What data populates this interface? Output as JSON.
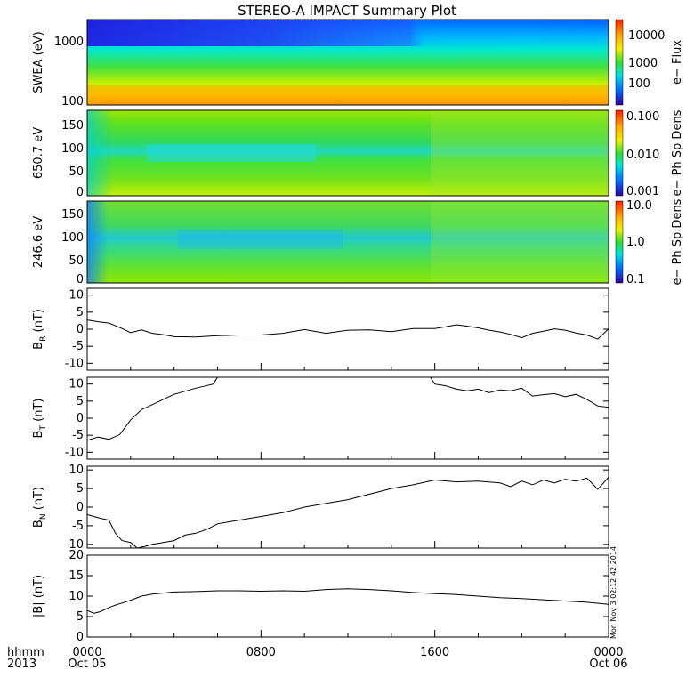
{
  "title": "STEREO-A IMPACT Summary Plot",
  "stamp": "Mon Nov 3 02:12:42 2014",
  "x_axis": {
    "row1_label": "hhmm",
    "row2_label": "2013",
    "ticks": [
      {
        "t": 0,
        "hhmm": "0000",
        "date": "Oct 05"
      },
      {
        "t": 8,
        "hhmm": "0800",
        "date": ""
      },
      {
        "t": 16,
        "hhmm": "1600",
        "date": ""
      },
      {
        "t": 24,
        "hhmm": "0000",
        "date": "Oct 06"
      }
    ]
  },
  "chart_data": [
    {
      "type": "heatmap",
      "id": "swea",
      "ylabel": "SWEA (eV)",
      "y_scale": "log",
      "yticks": [
        "1000",
        "100"
      ],
      "colorbar": {
        "label": "e− Flux",
        "ticks": [
          "10000",
          "1000",
          "100"
        ]
      },
      "description_values": {
        "high_energy_flux_start": 30,
        "high_energy_flux_end": 500,
        "low_energy_flux": 8000
      }
    },
    {
      "type": "heatmap",
      "id": "pad650",
      "ylabel": "650.7 eV",
      "ylim": [
        0,
        180
      ],
      "yticks": [
        "150",
        "100",
        "50",
        "0"
      ],
      "colorbar": {
        "label": "e− Ph Sp Dens",
        "ticks": [
          "0.100",
          "0.010",
          "0.001"
        ]
      }
    },
    {
      "type": "heatmap",
      "id": "pad246",
      "ylabel": "246.6 eV",
      "ylim": [
        0,
        180
      ],
      "yticks": [
        "150",
        "100",
        "50",
        "0"
      ],
      "colorbar": {
        "label": "e− Ph Sp Dens",
        "ticks": [
          "10.0",
          "1.0",
          "0.1"
        ]
      }
    },
    {
      "type": "line",
      "id": "br",
      "ylabel": "BR (nT)",
      "ylabel_main": "B",
      "ylabel_sub": "R",
      "ylabel_unit": " (nT)",
      "ylim": [
        -12,
        12
      ],
      "yticks": [
        10,
        5,
        0,
        -5,
        -10
      ],
      "x": [
        0,
        0.5,
        1,
        1.5,
        2,
        2.5,
        3,
        3.5,
        4,
        5,
        6,
        7,
        8,
        9,
        10,
        11,
        12,
        13,
        14,
        15,
        16,
        16.5,
        17,
        17.5,
        18,
        18.5,
        19,
        19.5,
        20,
        20.5,
        21,
        21.5,
        22,
        22.5,
        23,
        23.5,
        24
      ],
      "y": [
        2.7,
        2.2,
        1.8,
        0.5,
        -1,
        -0.2,
        -1.2,
        -1.6,
        -2.2,
        -2.3,
        -1.9,
        -1.7,
        -1.7,
        -1.2,
        -0.1,
        -1.2,
        -0.3,
        -0.2,
        -0.7,
        0.2,
        0.2,
        0.7,
        1.3,
        0.9,
        0.4,
        -0.3,
        -0.8,
        -1.5,
        -2.5,
        -1.2,
        -0.6,
        0.1,
        -0.3,
        -1.1,
        -1.7,
        -2.9,
        0.1
      ]
    },
    {
      "type": "line",
      "id": "bt",
      "ylabel": "BT (nT)",
      "ylabel_main": "B",
      "ylabel_sub": "T",
      "ylabel_unit": " (nT)",
      "ylim": [
        -12,
        12
      ],
      "yticks": [
        10,
        5,
        0,
        -5,
        -10
      ],
      "x": [
        0,
        0.5,
        1,
        1.5,
        2,
        2.5,
        3,
        3.5,
        4,
        5,
        5.8,
        6,
        15.8,
        16,
        16.5,
        17,
        17.5,
        18,
        18.5,
        19,
        19.5,
        20,
        20.5,
        21,
        21.5,
        22,
        22.5,
        23,
        23.5,
        24
      ],
      "y": [
        -6.5,
        -5.5,
        -6.2,
        -4.8,
        -0.5,
        2.5,
        4.0,
        5.5,
        7.0,
        8.8,
        10,
        12,
        12,
        10,
        9.5,
        8.5,
        8.0,
        8.5,
        7.5,
        8.3,
        8.0,
        8.8,
        6.5,
        6.9,
        7.2,
        6.3,
        7.0,
        5.5,
        3.6,
        3.2
      ]
    },
    {
      "type": "line",
      "id": "bn",
      "ylabel": "BN (nT)",
      "ylabel_main": "B",
      "ylabel_sub": "N",
      "ylabel_unit": " (nT)",
      "ylim": [
        -11,
        11
      ],
      "yticks": [
        10,
        5,
        0,
        -5,
        -10
      ],
      "x": [
        0,
        0.3,
        0.6,
        1,
        1.3,
        1.6,
        2,
        2.3,
        2.7,
        3,
        3.5,
        4,
        4.5,
        5,
        5.5,
        6,
        7,
        8,
        9,
        10,
        11,
        12,
        13,
        14,
        15,
        16,
        17,
        18,
        19,
        19.5,
        20,
        20.5,
        21,
        21.5,
        22,
        22.5,
        23,
        23.5,
        24
      ],
      "y": [
        -2,
        -2.5,
        -3,
        -3.5,
        -7,
        -9,
        -9.5,
        -11,
        -10.5,
        -10,
        -9.5,
        -9,
        -7.5,
        -7,
        -6,
        -4.5,
        -3.5,
        -2.5,
        -1.5,
        0,
        1,
        2,
        3.5,
        5,
        6,
        7.3,
        6.8,
        7,
        6.5,
        5.5,
        7,
        6,
        7.3,
        6.5,
        7.5,
        7.0,
        7.8,
        4.8,
        8.0
      ]
    },
    {
      "type": "line",
      "id": "bmag",
      "ylabel": "|B| (nT)",
      "ylim": [
        0,
        20
      ],
      "yticks": [
        20,
        15,
        10,
        5,
        0
      ],
      "x": [
        0,
        0.3,
        0.6,
        1,
        1.3,
        1.6,
        2,
        2.5,
        3,
        4,
        5,
        6,
        7,
        8,
        9,
        10,
        11,
        12,
        13,
        14,
        15,
        16,
        17,
        18,
        19,
        20,
        21,
        22,
        23,
        24
      ],
      "y": [
        6.5,
        5.8,
        6.2,
        7.2,
        7.8,
        8.3,
        9.0,
        10.0,
        10.5,
        11.0,
        11.1,
        11.3,
        11.3,
        11.2,
        11.3,
        11.2,
        11.6,
        11.8,
        11.6,
        11.3,
        10.9,
        10.6,
        10.4,
        10.0,
        9.6,
        9.4,
        9.1,
        8.8,
        8.5,
        8.0
      ]
    }
  ]
}
